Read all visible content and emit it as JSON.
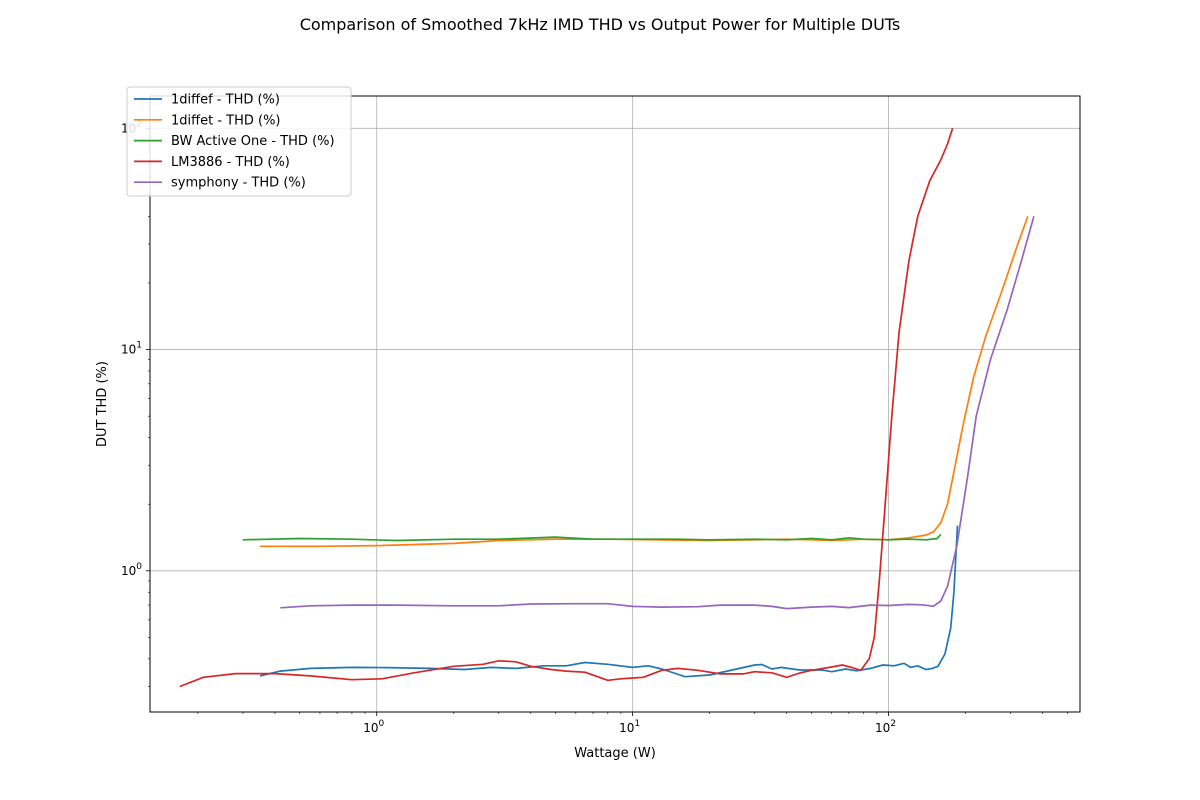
{
  "chart_data": {
    "type": "line",
    "title": "Comparison of Smoothed 7kHz IMD THD vs Output Power for Multiple DUTs",
    "xlabel": "Wattage (W)",
    "ylabel": "DUT THD (%)",
    "xscale": "log",
    "yscale": "log",
    "xlim": [
      0.13,
      560
    ],
    "ylim": [
      0.23,
      140
    ],
    "grid": true,
    "legend_position": "top-left",
    "x_ticks": [
      {
        "value": 1,
        "base": "10",
        "exp": "0"
      },
      {
        "value": 10,
        "base": "10",
        "exp": "1"
      },
      {
        "value": 100,
        "base": "10",
        "exp": "2"
      }
    ],
    "y_ticks": [
      {
        "value": 1,
        "base": "10",
        "exp": "0"
      },
      {
        "value": 10,
        "base": "10",
        "exp": "1"
      },
      {
        "value": 100,
        "base": "10",
        "exp": "2"
      }
    ],
    "series": [
      {
        "name": "1diffef - THD (%)",
        "color": "#1f77b4",
        "points": [
          [
            0.35,
            0.335
          ],
          [
            0.42,
            0.352
          ],
          [
            0.55,
            0.362
          ],
          [
            0.8,
            0.366
          ],
          [
            1.1,
            0.365
          ],
          [
            1.6,
            0.362
          ],
          [
            2.2,
            0.358
          ],
          [
            2.8,
            0.366
          ],
          [
            3.5,
            0.362
          ],
          [
            4.5,
            0.372
          ],
          [
            5.5,
            0.372
          ],
          [
            6.5,
            0.385
          ],
          [
            8,
            0.378
          ],
          [
            10,
            0.366
          ],
          [
            11.5,
            0.372
          ],
          [
            13,
            0.36
          ],
          [
            14.5,
            0.345
          ],
          [
            16,
            0.332
          ],
          [
            20,
            0.338
          ],
          [
            25,
            0.358
          ],
          [
            30,
            0.375
          ],
          [
            32,
            0.377
          ],
          [
            35,
            0.36
          ],
          [
            38,
            0.366
          ],
          [
            45,
            0.356
          ],
          [
            55,
            0.356
          ],
          [
            60,
            0.35
          ],
          [
            68,
            0.36
          ],
          [
            75,
            0.353
          ],
          [
            85,
            0.362
          ],
          [
            95,
            0.375
          ],
          [
            105,
            0.372
          ],
          [
            115,
            0.382
          ],
          [
            122,
            0.366
          ],
          [
            130,
            0.372
          ],
          [
            140,
            0.358
          ],
          [
            148,
            0.362
          ],
          [
            156,
            0.37
          ],
          [
            166,
            0.42
          ],
          [
            175,
            0.55
          ],
          [
            180,
            0.8
          ],
          [
            186,
            1.6
          ]
        ]
      },
      {
        "name": "1diffet - THD (%)",
        "color": "#ff7f0e",
        "points": [
          [
            0.35,
            1.29
          ],
          [
            0.6,
            1.29
          ],
          [
            1.0,
            1.3
          ],
          [
            2.0,
            1.33
          ],
          [
            3.0,
            1.37
          ],
          [
            5,
            1.39
          ],
          [
            8,
            1.39
          ],
          [
            12,
            1.38
          ],
          [
            20,
            1.37
          ],
          [
            30,
            1.38
          ],
          [
            40,
            1.39
          ],
          [
            50,
            1.38
          ],
          [
            60,
            1.37
          ],
          [
            80,
            1.39
          ],
          [
            100,
            1.38
          ],
          [
            120,
            1.41
          ],
          [
            140,
            1.45
          ],
          [
            150,
            1.5
          ],
          [
            160,
            1.65
          ],
          [
            170,
            2.0
          ],
          [
            180,
            2.8
          ],
          [
            195,
            4.5
          ],
          [
            215,
            7.5
          ],
          [
            240,
            11.5
          ],
          [
            280,
            19
          ],
          [
            320,
            30
          ],
          [
            350,
            40
          ]
        ]
      },
      {
        "name": "BW Active One - THD (%)",
        "color": "#2ca02c",
        "points": [
          [
            0.3,
            1.38
          ],
          [
            0.5,
            1.4
          ],
          [
            0.8,
            1.39
          ],
          [
            1.2,
            1.37
          ],
          [
            2.0,
            1.39
          ],
          [
            3.0,
            1.39
          ],
          [
            5,
            1.42
          ],
          [
            7,
            1.39
          ],
          [
            10,
            1.39
          ],
          [
            15,
            1.39
          ],
          [
            20,
            1.38
          ],
          [
            30,
            1.39
          ],
          [
            40,
            1.38
          ],
          [
            50,
            1.4
          ],
          [
            60,
            1.38
          ],
          [
            70,
            1.41
          ],
          [
            80,
            1.39
          ],
          [
            100,
            1.38
          ],
          [
            120,
            1.39
          ],
          [
            140,
            1.38
          ],
          [
            155,
            1.4
          ],
          [
            160,
            1.46
          ]
        ]
      },
      {
        "name": "LM3886 - THD (%)",
        "color": "#d62728",
        "points": [
          [
            0.17,
            0.3
          ],
          [
            0.21,
            0.33
          ],
          [
            0.28,
            0.343
          ],
          [
            0.4,
            0.343
          ],
          [
            0.55,
            0.335
          ],
          [
            0.8,
            0.322
          ],
          [
            1.05,
            0.325
          ],
          [
            1.4,
            0.346
          ],
          [
            2.0,
            0.37
          ],
          [
            2.6,
            0.378
          ],
          [
            3.0,
            0.392
          ],
          [
            3.5,
            0.388
          ],
          [
            4.0,
            0.37
          ],
          [
            4.8,
            0.358
          ],
          [
            5.5,
            0.352
          ],
          [
            6.5,
            0.348
          ],
          [
            8,
            0.32
          ],
          [
            9,
            0.325
          ],
          [
            11,
            0.33
          ],
          [
            13,
            0.355
          ],
          [
            15,
            0.362
          ],
          [
            18,
            0.355
          ],
          [
            22,
            0.342
          ],
          [
            27,
            0.342
          ],
          [
            30,
            0.35
          ],
          [
            35,
            0.346
          ],
          [
            40,
            0.33
          ],
          [
            45,
            0.345
          ],
          [
            50,
            0.355
          ],
          [
            58,
            0.365
          ],
          [
            66,
            0.375
          ],
          [
            72,
            0.365
          ],
          [
            78,
            0.355
          ],
          [
            84,
            0.4
          ],
          [
            88,
            0.5
          ],
          [
            92,
            0.9
          ],
          [
            97,
            2.0
          ],
          [
            103,
            5
          ],
          [
            110,
            12
          ],
          [
            120,
            25
          ],
          [
            130,
            40
          ],
          [
            145,
            58
          ],
          [
            160,
            72
          ],
          [
            170,
            85
          ],
          [
            178,
            100
          ]
        ]
      },
      {
        "name": "symphony - THD (%)",
        "color": "#9467bd",
        "points": [
          [
            0.42,
            0.68
          ],
          [
            0.55,
            0.695
          ],
          [
            0.8,
            0.7
          ],
          [
            1.2,
            0.7
          ],
          [
            2.0,
            0.695
          ],
          [
            3.0,
            0.695
          ],
          [
            4.0,
            0.708
          ],
          [
            6,
            0.71
          ],
          [
            8,
            0.71
          ],
          [
            10,
            0.69
          ],
          [
            13,
            0.685
          ],
          [
            18,
            0.688
          ],
          [
            22,
            0.7
          ],
          [
            30,
            0.7
          ],
          [
            35,
            0.69
          ],
          [
            40,
            0.675
          ],
          [
            50,
            0.685
          ],
          [
            60,
            0.69
          ],
          [
            70,
            0.682
          ],
          [
            85,
            0.7
          ],
          [
            100,
            0.697
          ],
          [
            120,
            0.705
          ],
          [
            135,
            0.702
          ],
          [
            150,
            0.692
          ],
          [
            160,
            0.73
          ],
          [
            170,
            0.85
          ],
          [
            185,
            1.3
          ],
          [
            205,
            2.8
          ],
          [
            220,
            5
          ],
          [
            250,
            9
          ],
          [
            290,
            15
          ],
          [
            330,
            25
          ],
          [
            370,
            40
          ]
        ]
      }
    ]
  }
}
